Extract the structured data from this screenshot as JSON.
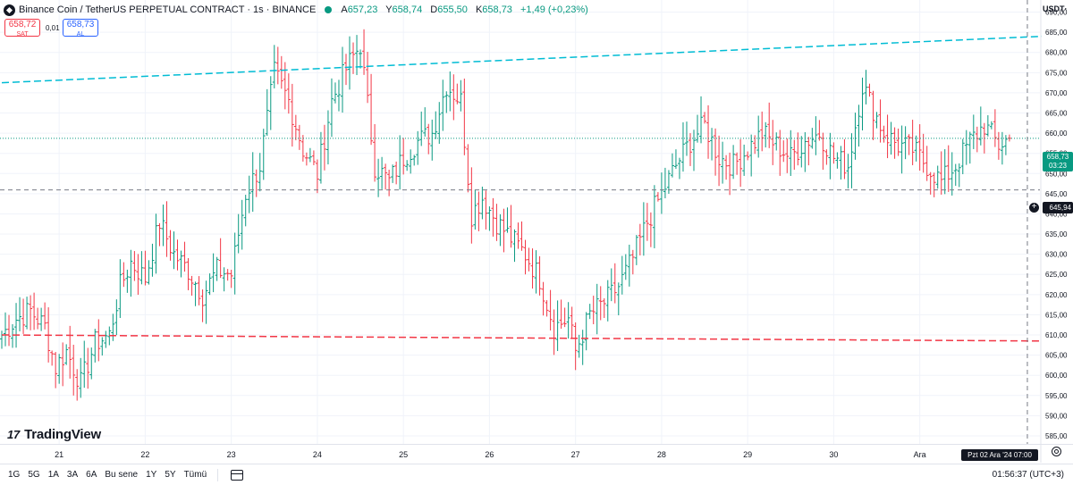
{
  "header": {
    "symbol_title": "Binance Coin / TetherUS PERPETUAL CONTRACT · 1s · BINANCE",
    "ohlc": {
      "open_label": "A",
      "open": "657,23",
      "high_label": "Y",
      "high": "658,74",
      "low_label": "D",
      "low": "655,50",
      "close_label": "K",
      "close": "658,73",
      "change": "+1,49 (+0,23%)"
    }
  },
  "trade": {
    "sell_price": "658,72",
    "sell_label": "SAT",
    "spread": "0,01",
    "buy_price": "658,73",
    "buy_label": "AL"
  },
  "currency": "USDT·",
  "logo_text": "TradingView",
  "price_scale": {
    "last_price": "658,73",
    "countdown": "03:23",
    "crosshair_price": "645,94"
  },
  "crosshair_date": "Pzt 02 Ara '24  07:00",
  "bottom_bar": {
    "ranges": [
      "1G",
      "5G",
      "1A",
      "3A",
      "6A",
      "Bu sene",
      "1Y",
      "5Y",
      "Tümü"
    ],
    "clock": "01:56:37 (UTC+3)"
  },
  "colors": {
    "up": "#089981",
    "down": "#f23645",
    "upper_trend": "#00bcd4",
    "lower_trend": "#f23645",
    "last_price": "#089981"
  },
  "chart_data": {
    "type": "ohlc",
    "title": "Binance Coin / TetherUS PERPETUAL CONTRACT · 1s · BINANCE",
    "ylim": [
      583,
      693
    ],
    "y_ticks": [
      "585,00",
      "590,00",
      "595,00",
      "600,00",
      "605,00",
      "610,00",
      "615,00",
      "620,00",
      "625,00",
      "630,00",
      "635,00",
      "640,00",
      "645,00",
      "650,00",
      "655,00",
      "660,00",
      "665,00",
      "670,00",
      "675,00",
      "680,00",
      "685,00",
      "690,00"
    ],
    "y_tick_values": [
      585,
      590,
      595,
      600,
      605,
      610,
      615,
      620,
      625,
      630,
      635,
      640,
      645,
      650,
      655,
      660,
      665,
      670,
      675,
      680,
      685,
      690
    ],
    "x_labels": [
      "21",
      "22",
      "23",
      "24",
      "25",
      "26",
      "27",
      "28",
      "29",
      "30",
      "Ara"
    ],
    "x_label_bars": [
      16,
      40,
      64,
      88,
      112,
      136,
      160,
      184,
      208,
      232,
      256
    ],
    "upper_trendline": {
      "bar_start": 0,
      "value_start": 672.5,
      "bar_end": 290,
      "value_end": 684
    },
    "lower_trendline": {
      "bar_start": 0,
      "value_start": 610,
      "bar_end": 290,
      "value_end": 608.5
    },
    "last_price": 658.73,
    "crosshair_value": 645.94,
    "crosshair_bar": 286,
    "anchors": [
      [
        0,
        610
      ],
      [
        4,
        614
      ],
      [
        8,
        616
      ],
      [
        12,
        612
      ],
      [
        15,
        602
      ],
      [
        18,
        606
      ],
      [
        22,
        598
      ],
      [
        26,
        608
      ],
      [
        30,
        610
      ],
      [
        33,
        622
      ],
      [
        36,
        628
      ],
      [
        40,
        624
      ],
      [
        44,
        638
      ],
      [
        48,
        630
      ],
      [
        52,
        626
      ],
      [
        56,
        620
      ],
      [
        60,
        626
      ],
      [
        64,
        625
      ],
      [
        68,
        645
      ],
      [
        72,
        652
      ],
      [
        76,
        675
      ],
      [
        80,
        668
      ],
      [
        84,
        656
      ],
      [
        88,
        650
      ],
      [
        92,
        668
      ],
      [
        96,
        676
      ],
      [
        100,
        682
      ],
      [
        104,
        652
      ],
      [
        108,
        648
      ],
      [
        112,
        654
      ],
      [
        116,
        658
      ],
      [
        120,
        660
      ],
      [
        124,
        672
      ],
      [
        128,
        668
      ],
      [
        131,
        640
      ],
      [
        134,
        644
      ],
      [
        138,
        638
      ],
      [
        142,
        634
      ],
      [
        146,
        630
      ],
      [
        150,
        624
      ],
      [
        154,
        612
      ],
      [
        158,
        614
      ],
      [
        160,
        606
      ],
      [
        164,
        615
      ],
      [
        168,
        618
      ],
      [
        172,
        622
      ],
      [
        176,
        629
      ],
      [
        180,
        638
      ],
      [
        184,
        645
      ],
      [
        188,
        652
      ],
      [
        192,
        658
      ],
      [
        196,
        662
      ],
      [
        200,
        654
      ],
      [
        204,
        652
      ],
      [
        208,
        656
      ],
      [
        212,
        660
      ],
      [
        216,
        657
      ],
      [
        220,
        654
      ],
      [
        224,
        658
      ],
      [
        228,
        660
      ],
      [
        232,
        654
      ],
      [
        236,
        652
      ],
      [
        240,
        672
      ],
      [
        242,
        668
      ],
      [
        246,
        660
      ],
      [
        250,
        657
      ],
      [
        254,
        656
      ],
      [
        258,
        652
      ],
      [
        262,
        648
      ],
      [
        266,
        652
      ],
      [
        270,
        658
      ],
      [
        274,
        662
      ],
      [
        278,
        657
      ],
      [
        281,
        658.73
      ]
    ]
  }
}
